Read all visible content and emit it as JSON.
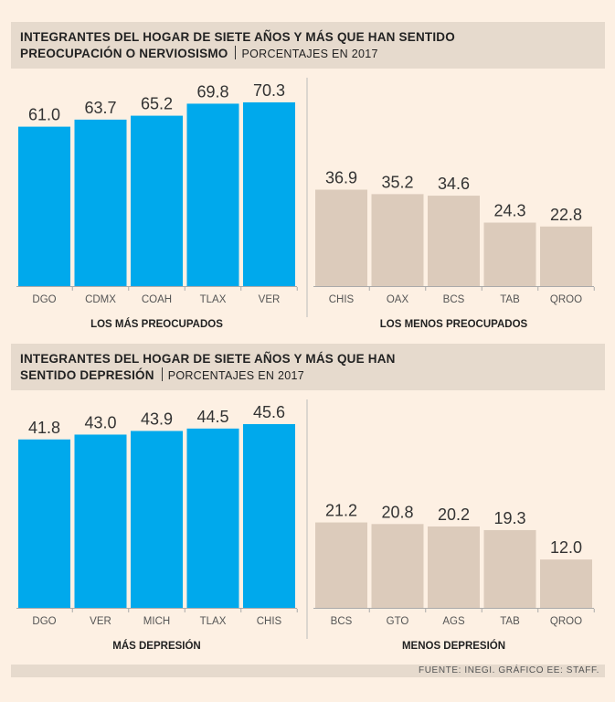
{
  "colors": {
    "blue": "#00a9ec",
    "beige": "#dccbbb",
    "header_bg": "#e6dacd",
    "page_bg": "#fdf0e3"
  },
  "chart1": {
    "title_line1": "INTEGRANTES DEL HOGAR DE SIETE AÑOS Y MÁS QUE HAN SENTIDO",
    "title_line2": "PREOCUPACIÓN O NERVIOSISMO",
    "subtitle": "PORCENTAJES EN 2017"
  },
  "chart2": {
    "title_line1": "INTEGRANTES DEL HOGAR DE SIETE AÑOS Y MÁS QUE HAN",
    "title_line2": "SENTIDO DEPRESIÓN",
    "subtitle": "PORCENTAJES EN 2017"
  },
  "chart_data": [
    {
      "type": "bar",
      "title": "INTEGRANTES DEL HOGAR DE SIETE AÑOS Y MÁS QUE HAN SENTIDO PREOCUPACIÓN O NERVIOSISMO",
      "unit": "PORCENTAJES EN 2017",
      "ylim": [
        0,
        70.3
      ],
      "groups": [
        {
          "label": "LOS MÁS PREOCUPADOS",
          "color": "#00a9ec",
          "categories": [
            "DGO",
            "CDMX",
            "COAH",
            "TLAX",
            "VER"
          ],
          "values": [
            61.0,
            63.7,
            65.2,
            69.8,
            70.3
          ]
        },
        {
          "label": "LOS MENOS PREOCUPADOS",
          "color": "#dccbbb",
          "categories": [
            "CHIS",
            "OAX",
            "BCS",
            "TAB",
            "QROO"
          ],
          "values": [
            36.9,
            35.2,
            34.6,
            24.3,
            22.8
          ]
        }
      ]
    },
    {
      "type": "bar",
      "title": "INTEGRANTES DEL HOGAR DE SIETE AÑOS Y MÁS QUE HAN SENTIDO DEPRESIÓN",
      "unit": "PORCENTAJES EN 2017",
      "ylim": [
        0,
        45.6
      ],
      "groups": [
        {
          "label": "MÁS DEPRESIÓN",
          "color": "#00a9ec",
          "categories": [
            "DGO",
            "VER",
            "MICH",
            "TLAX",
            "CHIS"
          ],
          "values": [
            41.8,
            43.0,
            43.9,
            44.5,
            45.6
          ]
        },
        {
          "label": "MENOS DEPRESIÓN",
          "color": "#dccbbb",
          "categories": [
            "BCS",
            "GTO",
            "AGS",
            "TAB",
            "QROO"
          ],
          "values": [
            21.2,
            20.8,
            20.2,
            19.3,
            12.0
          ]
        }
      ]
    }
  ],
  "footer": "FUENTE: INEGI. GRÁFICO EE: STAFF."
}
